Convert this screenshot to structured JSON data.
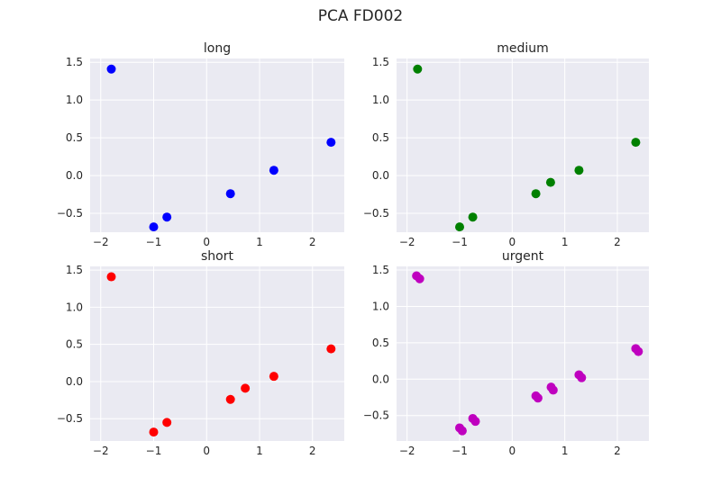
{
  "figure": {
    "title": "PCA FD002"
  },
  "chart_data": [
    {
      "type": "scatter",
      "title": "long",
      "color": "#0000ff",
      "xlim": [
        -2.2,
        2.6
      ],
      "ylim": [
        -0.75,
        1.55
      ],
      "xticks": [
        -2,
        -1,
        0,
        1,
        2
      ],
      "yticks": [
        -0.5,
        0.0,
        0.5,
        1.0,
        1.5
      ],
      "points": [
        {
          "x": -1.8,
          "y": 1.41
        },
        {
          "x": -1.0,
          "y": -0.68
        },
        {
          "x": -0.75,
          "y": -0.55
        },
        {
          "x": 0.45,
          "y": -0.24
        },
        {
          "x": 1.27,
          "y": 0.07
        },
        {
          "x": 2.35,
          "y": 0.44
        }
      ]
    },
    {
      "type": "scatter",
      "title": "medium",
      "color": "#008000",
      "xlim": [
        -2.2,
        2.6
      ],
      "ylim": [
        -0.75,
        1.55
      ],
      "xticks": [
        -2,
        -1,
        0,
        1,
        2
      ],
      "yticks": [
        -0.5,
        0.0,
        0.5,
        1.0,
        1.5
      ],
      "points": [
        {
          "x": -1.8,
          "y": 1.41
        },
        {
          "x": -1.0,
          "y": -0.68
        },
        {
          "x": -0.75,
          "y": -0.55
        },
        {
          "x": 0.45,
          "y": -0.24
        },
        {
          "x": 0.73,
          "y": -0.09
        },
        {
          "x": 1.27,
          "y": 0.07
        },
        {
          "x": 2.35,
          "y": 0.44
        }
      ]
    },
    {
      "type": "scatter",
      "title": "short",
      "color": "#ff0000",
      "xlim": [
        -2.2,
        2.6
      ],
      "ylim": [
        -0.8,
        1.55
      ],
      "xticks": [
        -2,
        -1,
        0,
        1,
        2
      ],
      "yticks": [
        -0.5,
        0.0,
        0.5,
        1.0,
        1.5
      ],
      "points": [
        {
          "x": -1.8,
          "y": 1.41
        },
        {
          "x": -1.0,
          "y": -0.68
        },
        {
          "x": -0.75,
          "y": -0.55
        },
        {
          "x": 0.45,
          "y": -0.24
        },
        {
          "x": 0.73,
          "y": -0.09
        },
        {
          "x": 1.27,
          "y": 0.07
        },
        {
          "x": 2.35,
          "y": 0.44
        }
      ]
    },
    {
      "type": "scatter",
      "title": "urgent",
      "color": "#bf00bf",
      "xlim": [
        -2.2,
        2.6
      ],
      "ylim": [
        -0.85,
        1.55
      ],
      "xticks": [
        -2,
        -1,
        0,
        1,
        2
      ],
      "yticks": [
        -0.5,
        0.0,
        0.5,
        1.0,
        1.5
      ],
      "points": [
        {
          "x": -1.82,
          "y": 1.42
        },
        {
          "x": -1.76,
          "y": 1.38
        },
        {
          "x": -1.0,
          "y": -0.67
        },
        {
          "x": -0.95,
          "y": -0.71
        },
        {
          "x": -0.75,
          "y": -0.54
        },
        {
          "x": -0.7,
          "y": -0.58
        },
        {
          "x": 0.45,
          "y": -0.23
        },
        {
          "x": 0.49,
          "y": -0.26
        },
        {
          "x": 0.74,
          "y": -0.11
        },
        {
          "x": 0.78,
          "y": -0.15
        },
        {
          "x": 1.27,
          "y": 0.06
        },
        {
          "x": 1.32,
          "y": 0.02
        },
        {
          "x": 2.35,
          "y": 0.42
        },
        {
          "x": 2.4,
          "y": 0.38
        }
      ]
    }
  ]
}
